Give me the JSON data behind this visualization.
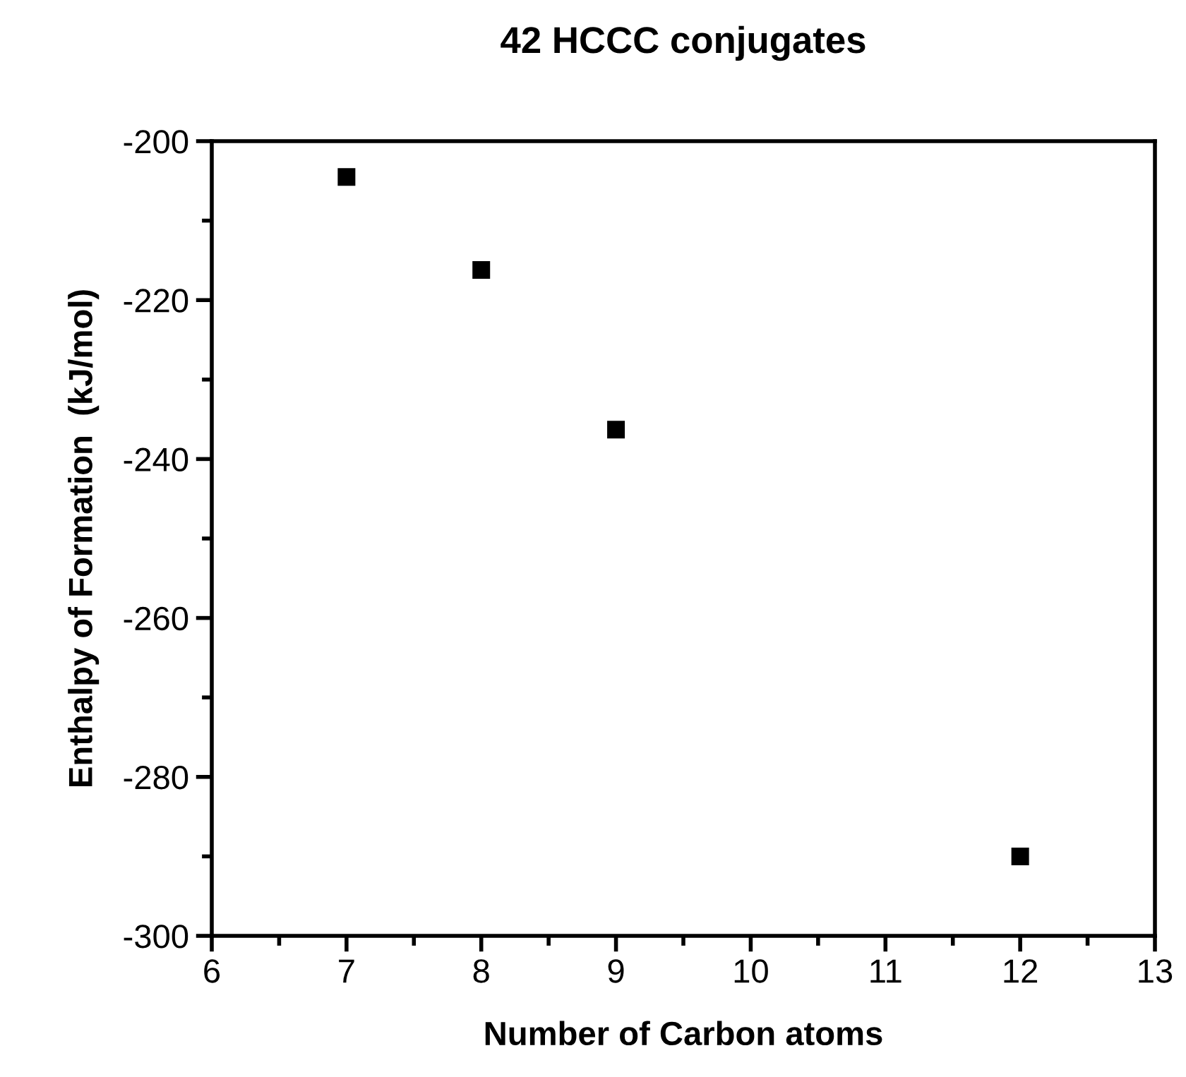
{
  "chart_data": {
    "type": "scatter",
    "title": "42 HCCC conjugates",
    "xlabel": "Number of Carbon atoms",
    "ylabel": "Enthalpy of Formation  (kJ/mol)",
    "x": [
      7,
      8,
      9,
      12
    ],
    "series": [
      {
        "color": "#000000",
        "values": [
          -204.5,
          -216.2,
          -236.3,
          -290.0
        ]
      }
    ],
    "marker": "square",
    "xlim": [
      6,
      13
    ],
    "xticks": [
      6,
      7,
      8,
      9,
      10,
      11,
      12,
      13
    ],
    "ylim": [
      -300,
      -200
    ],
    "yticks": [
      -300,
      -280,
      -260,
      -240,
      -220,
      -200
    ],
    "grid": false,
    "legend": false
  }
}
